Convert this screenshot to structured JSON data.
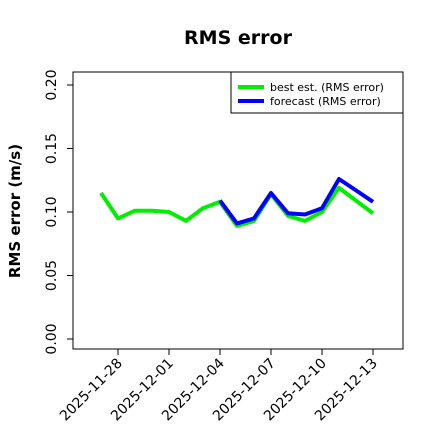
{
  "chart_data": {
    "type": "line",
    "title": "RMS error",
    "xlabel": "",
    "ylabel": "RMS error (m/s)",
    "ylim": [
      0.0,
      0.21
    ],
    "yticks": [
      "0.00",
      "0.05",
      "0.10",
      "0.15",
      "0.20"
    ],
    "ytick_values": [
      0.0,
      0.05,
      0.1,
      0.15,
      0.2
    ],
    "x": [
      "2025-11-27",
      "2025-11-28",
      "2025-11-29",
      "2025-11-30",
      "2025-12-01",
      "2025-12-02",
      "2025-12-03",
      "2025-12-04",
      "2025-12-05",
      "2025-12-06",
      "2025-12-07",
      "2025-12-08",
      "2025-12-09",
      "2025-12-10",
      "2025-12-11",
      "2025-12-12",
      "2025-12-13"
    ],
    "xticks": [
      "2025-11-28",
      "2025-12-01",
      "2025-12-04",
      "2025-12-07",
      "2025-12-10",
      "2025-12-13"
    ],
    "highlight_tick": "2025-12-04",
    "highlight_color": "#228b22",
    "legend_position": "top-right",
    "grid": false,
    "series": [
      {
        "name": "best est. (RMS error)",
        "color": "#00ee00",
        "x": [
          "2025-11-27",
          "2025-11-28",
          "2025-11-29",
          "2025-11-30",
          "2025-12-01",
          "2025-12-02",
          "2025-12-03",
          "2025-12-04",
          "2025-12-05",
          "2025-12-06",
          "2025-12-07",
          "2025-12-08",
          "2025-12-09",
          "2025-12-10",
          "2025-12-11",
          "2025-12-12",
          "2025-12-13"
        ],
        "values": [
          0.115,
          0.095,
          0.101,
          0.101,
          0.1,
          0.093,
          0.103,
          0.108,
          0.089,
          0.093,
          0.114,
          0.097,
          0.093,
          0.1,
          0.119,
          0.109,
          0.099
        ]
      },
      {
        "name": "forecast (RMS error)",
        "color": "#0000ff",
        "x": [
          "2025-12-04",
          "2025-12-05",
          "2025-12-06",
          "2025-12-07",
          "2025-12-08",
          "2025-12-09",
          "2025-12-10",
          "2025-12-11",
          "2025-12-12",
          "2025-12-13"
        ],
        "values": [
          0.109,
          0.091,
          0.095,
          0.115,
          0.099,
          0.098,
          0.103,
          0.126,
          0.117,
          0.108
        ]
      }
    ]
  }
}
